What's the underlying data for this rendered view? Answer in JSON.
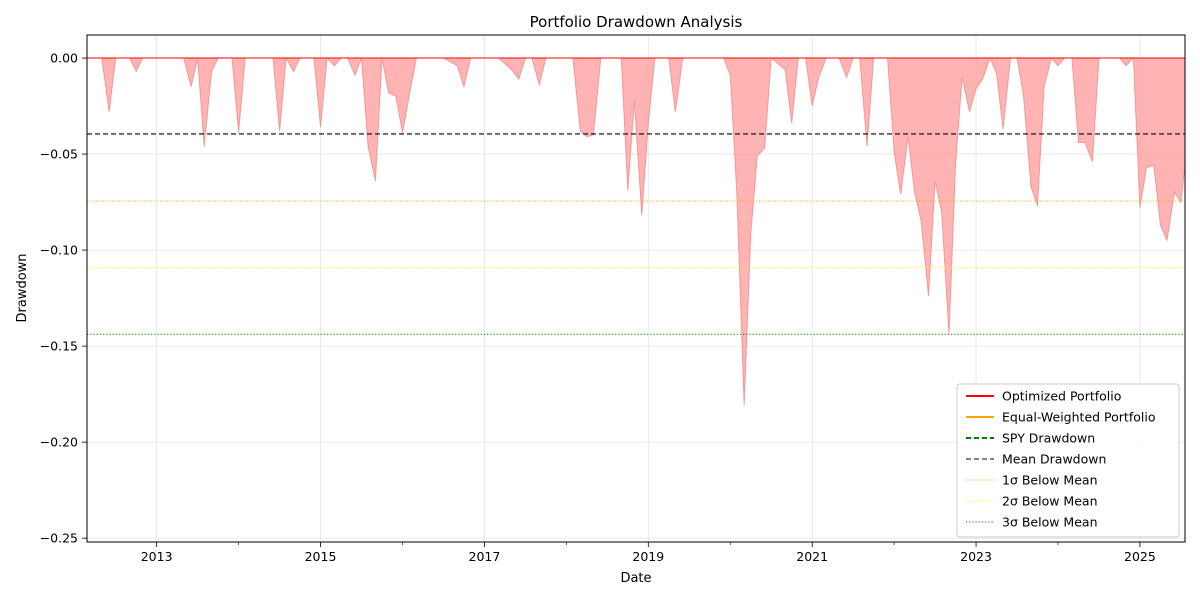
{
  "chart_data": {
    "type": "area",
    "title": "Portfolio Drawdown Analysis",
    "xlabel": "Date",
    "ylabel": "Drawdown",
    "xlim": [
      2012.15,
      2025.55
    ],
    "ylim": [
      -0.252,
      0.012
    ],
    "x_ticks": [
      2013,
      2015,
      2017,
      2019,
      2021,
      2023,
      2025
    ],
    "x_tick_labels": [
      "2013",
      "2015",
      "2017",
      "2019",
      "2021",
      "2023",
      "2025"
    ],
    "x_minor_ticks": [
      2014,
      2016,
      2018,
      2020,
      2022,
      2024
    ],
    "y_ticks": [
      0.0,
      -0.05,
      -0.1,
      -0.15,
      -0.2,
      -0.25
    ],
    "y_tick_labels": [
      "0.00",
      "−0.05",
      "−0.10",
      "−0.15",
      "−0.20",
      "−0.25"
    ],
    "grid": true,
    "legend_position": "bottom-right",
    "fill_color": "#ff9e9e",
    "series": [
      {
        "name": "Optimized Portfolio",
        "color": "#ff0000",
        "style": "solid",
        "x": [
          2012.15,
          2012.33,
          2012.42,
          2012.5,
          2012.67,
          2012.75,
          2012.83,
          2013.0,
          2013.33,
          2013.42,
          2013.5,
          2013.58,
          2013.67,
          2013.75,
          2013.83,
          2013.92,
          2014.0,
          2014.08,
          2014.17,
          2014.42,
          2014.5,
          2014.58,
          2014.67,
          2014.75,
          2014.83,
          2014.92,
          2015.0,
          2015.08,
          2015.17,
          2015.25,
          2015.33,
          2015.42,
          2015.5,
          2015.58,
          2015.67,
          2015.75,
          2015.83,
          2015.92,
          2016.0,
          2016.08,
          2016.17,
          2016.5,
          2016.67,
          2016.75,
          2016.83,
          2016.92,
          2017.17,
          2017.33,
          2017.42,
          2017.5,
          2017.58,
          2017.67,
          2017.75,
          2017.83,
          2017.92,
          2018.08,
          2018.17,
          2018.25,
          2018.33,
          2018.42,
          2018.67,
          2018.75,
          2018.83,
          2018.92,
          2019.0,
          2019.08,
          2019.17,
          2019.25,
          2019.33,
          2019.42,
          2019.5,
          2019.67,
          2019.92,
          2020.0,
          2020.08,
          2020.17,
          2020.25,
          2020.33,
          2020.42,
          2020.5,
          2020.67,
          2020.75,
          2020.83,
          2020.92,
          2021.0,
          2021.08,
          2021.17,
          2021.25,
          2021.33,
          2021.42,
          2021.5,
          2021.58,
          2021.67,
          2021.75,
          2021.83,
          2021.92,
          2022.0,
          2022.08,
          2022.17,
          2022.25,
          2022.33,
          2022.42,
          2022.5,
          2022.58,
          2022.67,
          2022.75,
          2022.83,
          2022.92,
          2023.0,
          2023.08,
          2023.17,
          2023.25,
          2023.33,
          2023.42,
          2023.5,
          2023.58,
          2023.67,
          2023.75,
          2023.83,
          2023.92,
          2024.0,
          2024.08,
          2024.17,
          2024.25,
          2024.33,
          2024.42,
          2024.5,
          2024.58,
          2024.75,
          2024.83,
          2024.92,
          2025.0,
          2025.08,
          2025.17,
          2025.25,
          2025.33,
          2025.42,
          2025.5,
          2025.55
        ],
        "y": [
          0.0,
          0.0,
          -0.028,
          0.0,
          0.0,
          -0.007,
          0.0,
          0.0,
          0.0,
          -0.015,
          0.0,
          -0.046,
          -0.007,
          0.0,
          0.0,
          0.0,
          -0.039,
          0.0,
          0.0,
          0.0,
          -0.038,
          0.0,
          -0.007,
          0.0,
          0.0,
          0.0,
          -0.036,
          0.0,
          -0.004,
          0.0,
          0.0,
          -0.009,
          0.0,
          -0.046,
          -0.064,
          0.0,
          -0.018,
          -0.02,
          -0.039,
          -0.02,
          0.0,
          0.0,
          -0.004,
          -0.015,
          0.0,
          0.0,
          0.0,
          -0.006,
          -0.011,
          0.0,
          0.0,
          -0.014,
          0.0,
          0.0,
          0.0,
          0.0,
          -0.038,
          -0.041,
          -0.04,
          0.0,
          0.0,
          -0.069,
          -0.022,
          -0.082,
          -0.034,
          0.0,
          0.0,
          0.0,
          -0.028,
          0.0,
          0.0,
          0.0,
          0.0,
          -0.009,
          -0.07,
          -0.181,
          -0.092,
          -0.051,
          -0.047,
          0.0,
          -0.006,
          -0.034,
          0.0,
          0.0,
          -0.025,
          -0.01,
          0.0,
          0.0,
          0.0,
          -0.01,
          0.0,
          0.0,
          -0.046,
          0.0,
          0.0,
          0.0,
          -0.049,
          -0.071,
          -0.041,
          -0.07,
          -0.085,
          -0.124,
          -0.064,
          -0.08,
          -0.144,
          -0.055,
          -0.01,
          -0.028,
          -0.016,
          -0.011,
          0.0,
          -0.008,
          -0.037,
          0.0,
          0.0,
          -0.02,
          -0.067,
          -0.077,
          -0.015,
          0.0,
          -0.004,
          0.0,
          0.0,
          -0.044,
          -0.044,
          -0.054,
          0.0,
          0.0,
          0.0,
          -0.004,
          0.0,
          -0.078,
          -0.057,
          -0.056,
          -0.087,
          -0.095,
          -0.07,
          -0.075,
          -0.056
        ]
      },
      {
        "name": "Equal-Weighted Portfolio",
        "color": "#ffa500",
        "style": "solid"
      },
      {
        "name": "SPY Drawdown",
        "color": "#008000",
        "style": "dashed"
      }
    ],
    "reference_lines": [
      {
        "name": "Mean Drawdown",
        "value": -0.0395,
        "color": "#000000",
        "style": "dashed"
      },
      {
        "name": "1σ Below Mean",
        "value": -0.0745,
        "color": "#ffa500",
        "style": "dotted"
      },
      {
        "name": "2σ Below Mean",
        "value": -0.1092,
        "color": "#ffff00",
        "style": "dotted"
      },
      {
        "name": "3σ Below Mean",
        "value": -0.1438,
        "color": "#008000",
        "style": "dotted"
      }
    ]
  }
}
